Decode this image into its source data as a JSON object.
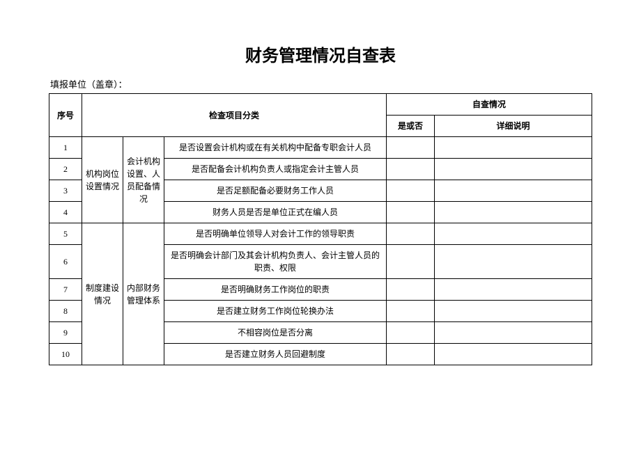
{
  "title": "财务管理情况自查表",
  "subtitle": "填报单位（盖章）：",
  "headers": {
    "seq": "序号",
    "category": "检查项目分类",
    "self_check": "自查情况",
    "yes_no": "是或否",
    "detail": "详细说明"
  },
  "groups": [
    {
      "cat1": "机构岗位设置情况",
      "cat2": "会计机构设置、人员配备情况",
      "rows": [
        {
          "seq": "1",
          "item": "是否设置会计机构或在有关机构中配备专职会计人员",
          "yn": "",
          "detail": ""
        },
        {
          "seq": "2",
          "item": "是否配备会计机构负责人或指定会计主管人员",
          "yn": "",
          "detail": ""
        },
        {
          "seq": "3",
          "item": "是否足额配备必要财务工作人员",
          "yn": "",
          "detail": ""
        },
        {
          "seq": "4",
          "item": "财务人员是否是单位正式在编人员",
          "yn": "",
          "detail": ""
        }
      ]
    },
    {
      "cat1": "制度建设情况",
      "cat2": "内部财务管理体系",
      "rows": [
        {
          "seq": "5",
          "item": "是否明确单位领导人对会计工作的领导职责",
          "yn": "",
          "detail": ""
        },
        {
          "seq": "6",
          "item": "是否明确会计部门及其会计机构负责人、会计主管人员的职责、权限",
          "yn": "",
          "detail": ""
        },
        {
          "seq": "7",
          "item": "是否明确财务工作岗位的职责",
          "yn": "",
          "detail": ""
        },
        {
          "seq": "8",
          "item": "是否建立财务工作岗位轮换办法",
          "yn": "",
          "detail": ""
        },
        {
          "seq": "9",
          "item": "不相容岗位是否分离",
          "yn": "",
          "detail": ""
        },
        {
          "seq": "10",
          "item": "是否建立财务人员回避制度",
          "yn": "",
          "detail": ""
        }
      ]
    }
  ],
  "style": {
    "background_color": "#ffffff",
    "text_color": "#000000",
    "border_color": "#000000",
    "title_fontsize": 24,
    "body_fontsize": 12,
    "subtitle_fontsize": 13,
    "col_widths": {
      "seq": 38,
      "cat1": 50,
      "cat2": 50,
      "item": 310,
      "yn": 60
    }
  }
}
